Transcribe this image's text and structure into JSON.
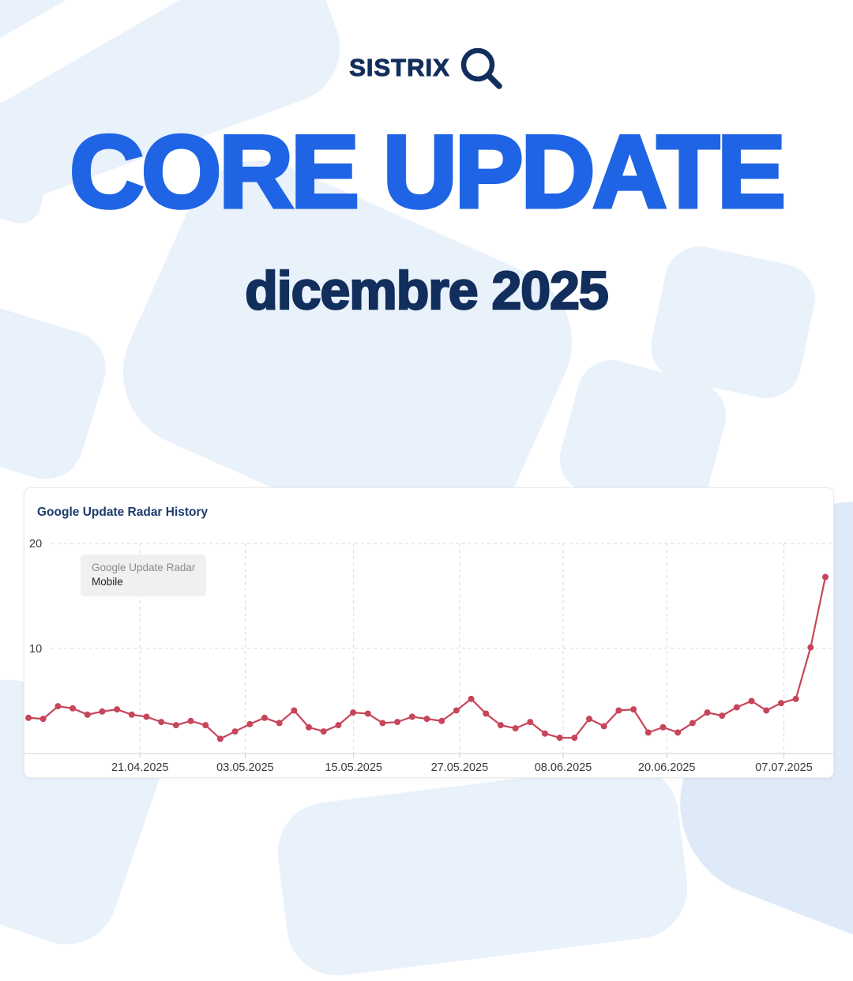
{
  "brand": {
    "logo_text": "SISTRIX",
    "logo_icon": "magnifier-icon"
  },
  "headline": {
    "title": "CORE UPDATE",
    "subtitle": "dicembre 2025"
  },
  "colors": {
    "accent_blue": "#1f64e4",
    "navy": "#122e5c",
    "line_red": "#c7455a",
    "bg_shape": "#e9f1fb",
    "bg_shape_dark": "#dfeaf8",
    "grid": "#d9d9d9",
    "axis_line": "#cfcfcf",
    "axis_text": "#3a3a3a",
    "card_title": "#1d3c6e",
    "tooltip_bg": "#f0f0f0",
    "tooltip_label": "#8a8a8a",
    "tooltip_value": "#1f1f1f"
  },
  "chart_card": {
    "title": "Google Update Radar History",
    "tooltip": {
      "label": "Google Update Radar",
      "value": "Mobile"
    }
  },
  "chart_data": {
    "type": "line",
    "title": "Google Update Radar History",
    "xlabel": "",
    "ylabel": "",
    "ylim": [
      0,
      20
    ],
    "yticks": [
      10,
      20
    ],
    "grid": "dashed",
    "legend_position": "tooltip-overlay-top-left",
    "xticks": [
      {
        "label": "21.04.2025",
        "f": 0.14
      },
      {
        "label": "03.05.2025",
        "f": 0.272
      },
      {
        "label": "15.05.2025",
        "f": 0.408
      },
      {
        "label": "27.05.2025",
        "f": 0.541
      },
      {
        "label": "08.06.2025",
        "f": 0.671
      },
      {
        "label": "20.06.2025",
        "f": 0.801
      },
      {
        "label": "07.07.2025",
        "f": 0.948
      }
    ],
    "series": [
      {
        "name": "Google Update Radar (Mobile)",
        "values": [
          3.4,
          3.3,
          4.5,
          4.3,
          3.7,
          4.0,
          4.2,
          3.7,
          3.5,
          3.0,
          2.7,
          3.1,
          2.7,
          1.4,
          2.1,
          2.8,
          3.4,
          2.9,
          4.1,
          2.5,
          2.1,
          2.7,
          3.9,
          3.8,
          2.9,
          3.0,
          3.5,
          3.3,
          3.1,
          4.1,
          5.2,
          3.8,
          2.7,
          2.4,
          3.0,
          1.9,
          1.5,
          1.5,
          3.3,
          2.6,
          4.1,
          4.2,
          2.0,
          2.5,
          2.0,
          2.9,
          3.9,
          3.6,
          4.4,
          5.0,
          4.1,
          4.8,
          5.2,
          10.1,
          16.8
        ]
      }
    ]
  }
}
